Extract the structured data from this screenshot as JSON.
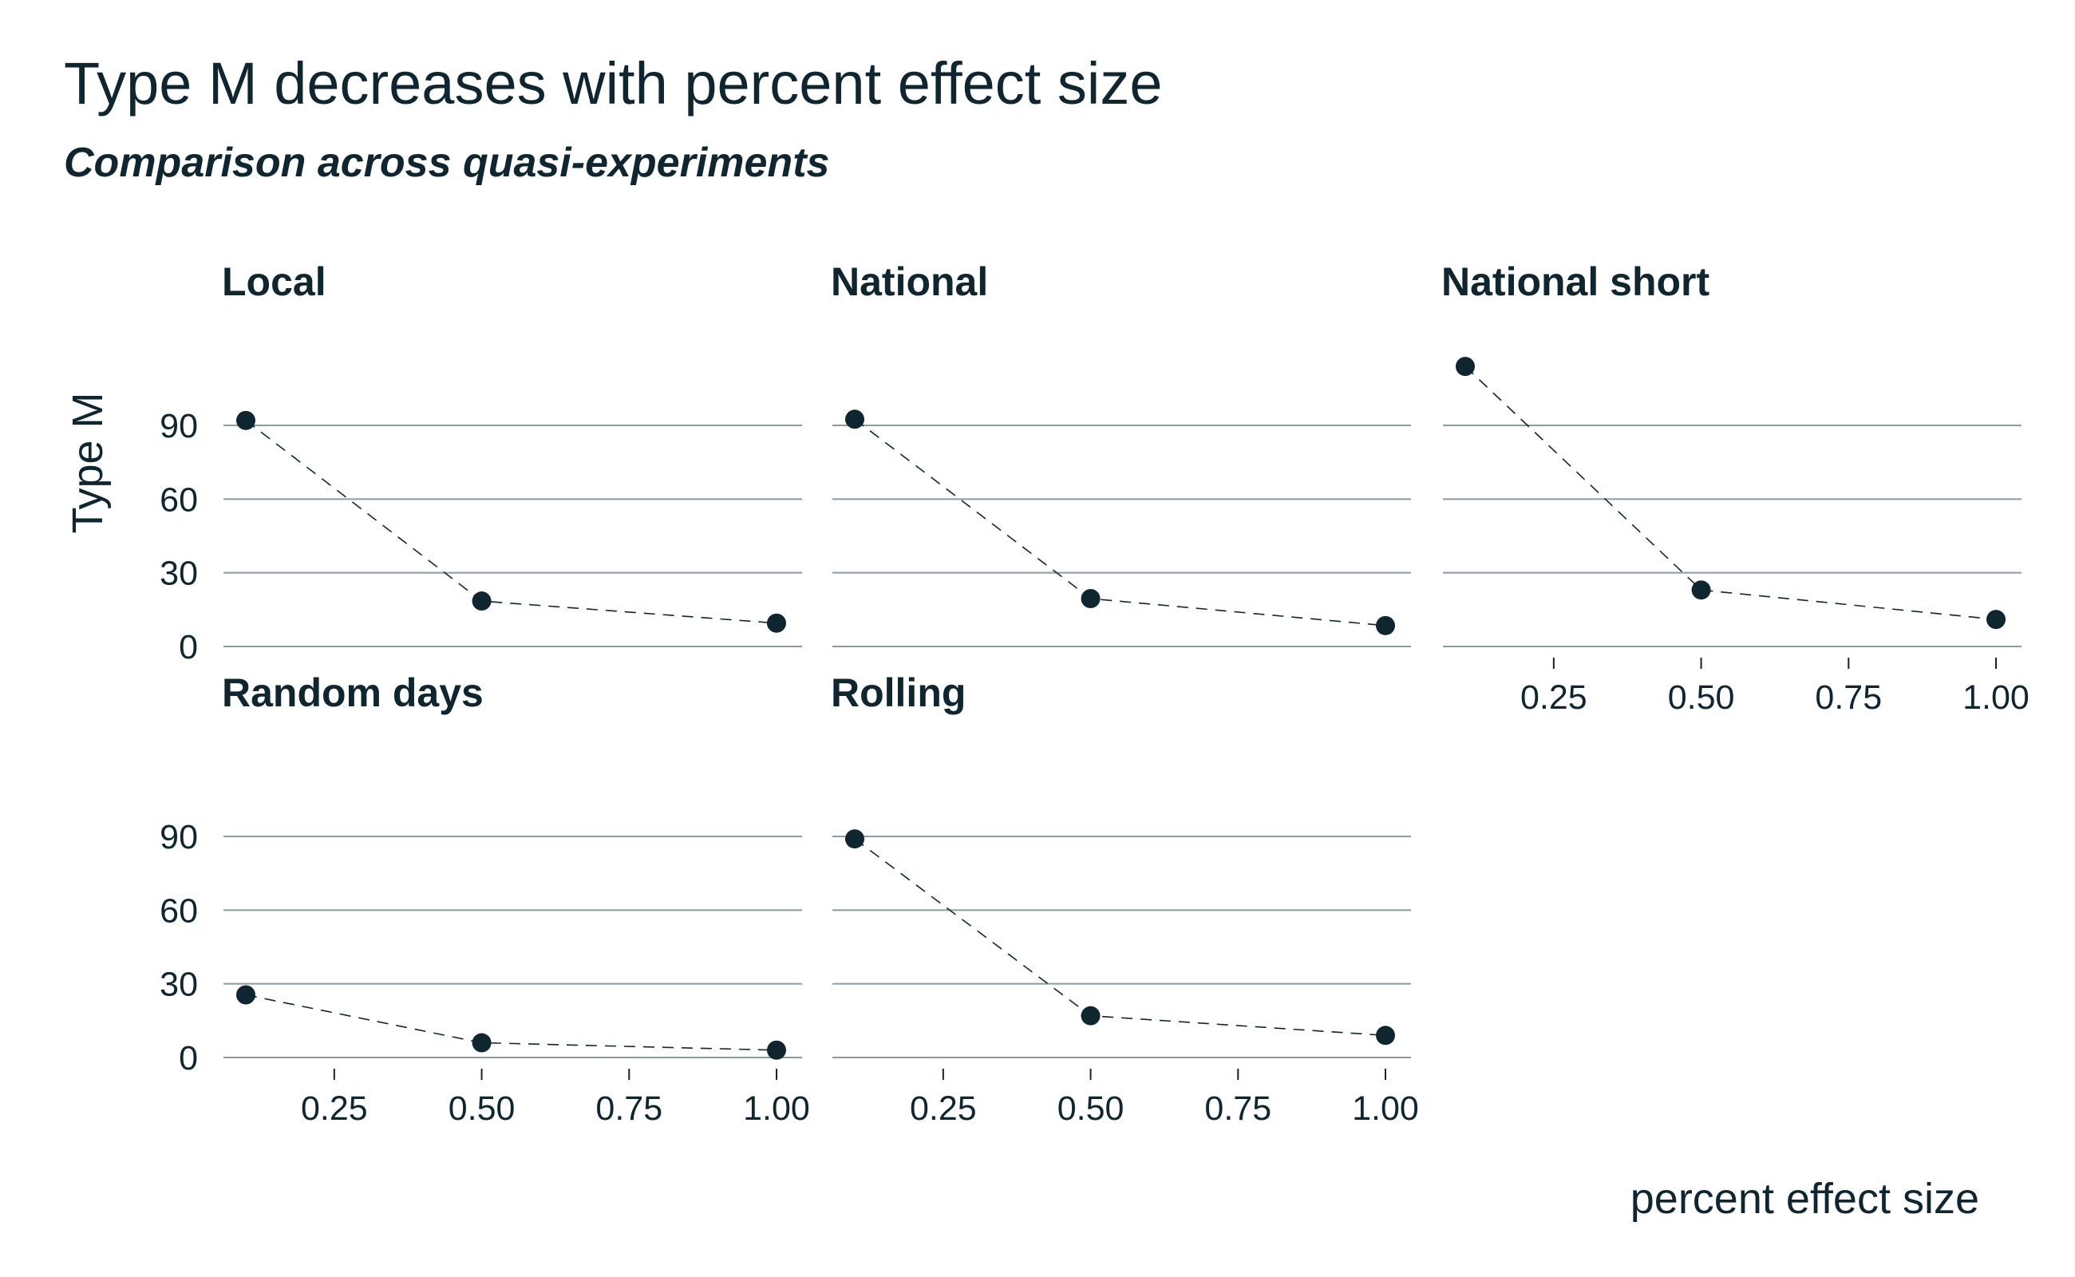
{
  "chart_data": {
    "type": "scatter",
    "title": "Type M decreases with percent effect size",
    "subtitle": "Comparison across quasi-experiments",
    "xlabel": "percent effect size",
    "ylabel": "Type M",
    "xlim": [
      0.1,
      1.0
    ],
    "ylim": [
      0,
      90
    ],
    "x_ticks": [
      "0.25",
      "0.50",
      "0.75",
      "1.00"
    ],
    "y_ticks": [
      "0",
      "30",
      "60",
      "90"
    ],
    "grid": "horizontal",
    "line_style": "dashed",
    "facets": [
      {
        "name": "Local",
        "x": [
          0.1,
          0.5,
          1.0
        ],
        "y": [
          92,
          18.5,
          9.5
        ]
      },
      {
        "name": "National",
        "x": [
          0.1,
          0.5,
          1.0
        ],
        "y": [
          92.5,
          19.5,
          8.5
        ]
      },
      {
        "name": "National short",
        "x": [
          0.1,
          0.5,
          1.0
        ],
        "y": [
          114,
          23,
          11
        ]
      },
      {
        "name": "Random days",
        "x": [
          0.1,
          0.5,
          1.0
        ],
        "y": [
          25.5,
          6,
          3
        ]
      },
      {
        "name": "Rolling",
        "x": [
          0.1,
          0.5,
          1.0
        ],
        "y": [
          89,
          17,
          9
        ]
      }
    ]
  }
}
